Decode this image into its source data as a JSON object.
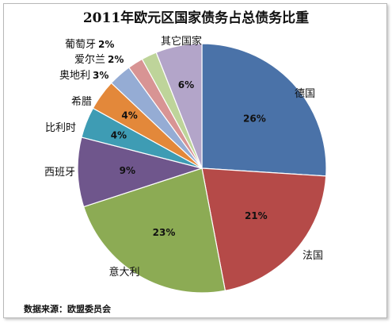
{
  "chart_data": {
    "type": "pie",
    "title": "2011年欧元区国家债务占总债务比重",
    "source": "数据来源：欧盟委员会",
    "slices": [
      {
        "name": "德国",
        "value": 26,
        "label": "26%",
        "color": "#4a72a8"
      },
      {
        "name": "法国",
        "value": 21,
        "label": "21%",
        "color": "#b54a48"
      },
      {
        "name": "意大利",
        "value": 23,
        "label": "23%",
        "color": "#8cab54"
      },
      {
        "name": "西班牙",
        "value": 9,
        "label": "9%",
        "color": "#6f568c"
      },
      {
        "name": "比利时",
        "value": 4,
        "label": "4%",
        "color": "#3e9cb4"
      },
      {
        "name": "希腊",
        "value": 4,
        "label": "4%",
        "color": "#e3883a"
      },
      {
        "name": "奥地利",
        "value": 3,
        "label": "3%",
        "color": "#95acd4"
      },
      {
        "name": "爱尔兰",
        "value": 2,
        "label": "2%",
        "color": "#d89494"
      },
      {
        "name": "葡萄牙",
        "value": 2,
        "label": "2%",
        "color": "#bed49a"
      },
      {
        "name": "其它国家",
        "value": 6,
        "label": "6%",
        "color": "#b3a5c9"
      }
    ]
  }
}
